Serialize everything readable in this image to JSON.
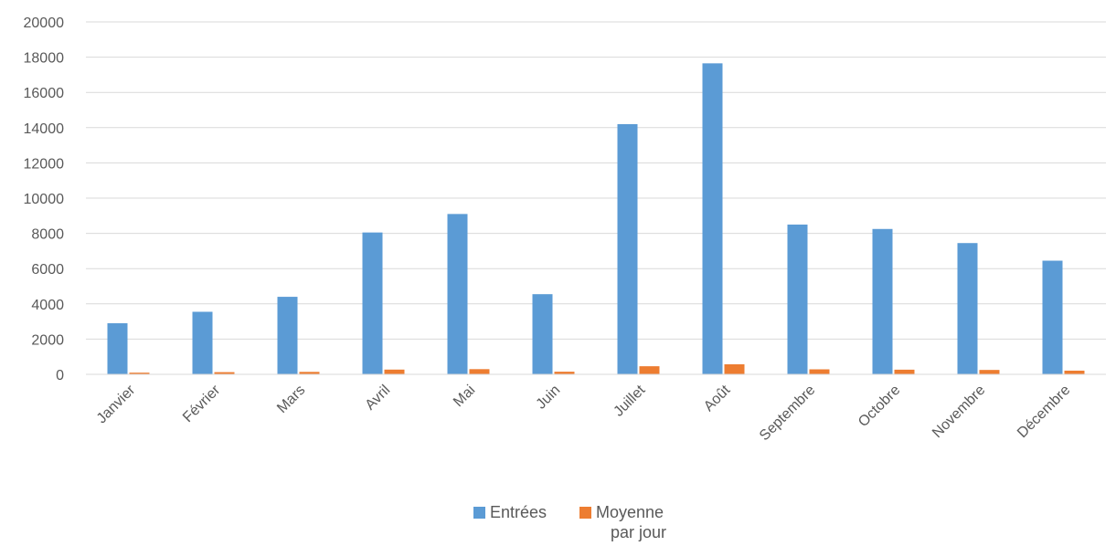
{
  "chart_data": {
    "type": "bar",
    "categories": [
      "Janvier",
      "Février",
      "Mars",
      "Avril",
      "Mai",
      "Juin",
      "Juillet",
      "Août",
      "Septembre",
      "Octobre",
      "Novembre",
      "Décembre"
    ],
    "series": [
      {
        "name": "Entrées",
        "color": "#5b9bd5",
        "values": [
          2900,
          3550,
          4400,
          8050,
          9100,
          4550,
          14200,
          17650,
          8500,
          8250,
          7450,
          6450
        ]
      },
      {
        "name": "Moyenne par jour",
        "color": "#ed7d31",
        "values": [
          95,
          125,
          140,
          270,
          295,
          150,
          460,
          570,
          285,
          265,
          250,
          210
        ]
      }
    ],
    "ylim": [
      0,
      20000
    ],
    "yticks": [
      0,
      2000,
      4000,
      6000,
      8000,
      10000,
      12000,
      14000,
      16000,
      18000,
      20000
    ],
    "grid": true,
    "legend": "bottom",
    "title": "",
    "xlabel": "",
    "ylabel": ""
  },
  "legend": {
    "series_1": "Entrées",
    "series_2_line1": "Moyenne",
    "series_2_line2": "par jour"
  }
}
